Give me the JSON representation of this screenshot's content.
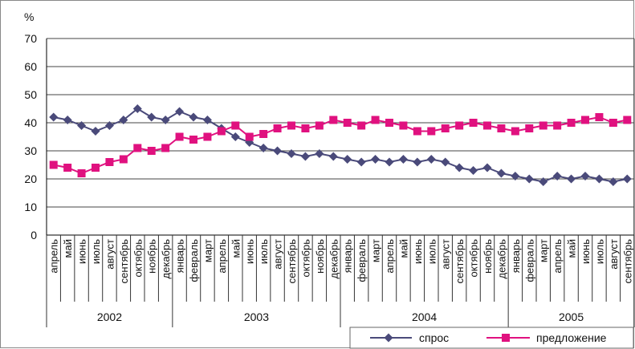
{
  "chart_data": {
    "type": "line",
    "title": "",
    "ylabel": "%",
    "xlabel": "",
    "ylim": [
      0,
      70
    ],
    "yticks": [
      "0",
      "10",
      "20",
      "30",
      "40",
      "50",
      "60",
      "70"
    ],
    "grid": true,
    "legend_position": "bottom-right",
    "categories": [
      "апрель",
      "май",
      "июнь",
      "июль",
      "август",
      "сентябрь",
      "октябрь",
      "ноябрь",
      "декабрь",
      "январь",
      "февраль",
      "март",
      "апрель",
      "май",
      "июнь",
      "июль",
      "август",
      "сентябрь",
      "октябрь",
      "ноябрь",
      "декабрь",
      "январь",
      "февраль",
      "март",
      "апрель",
      "май",
      "июнь",
      "июль",
      "август",
      "сентябрь",
      "октябрь",
      "ноябрь",
      "декабрь",
      "январь",
      "февраль",
      "март",
      "апрель",
      "май",
      "июнь",
      "июль",
      "август",
      "сентябрь"
    ],
    "years": [
      {
        "label": "2002",
        "count": 9
      },
      {
        "label": "2003",
        "count": 12
      },
      {
        "label": "2004",
        "count": 12
      },
      {
        "label": "2005",
        "count": 9
      }
    ],
    "series": [
      {
        "name": "спрос",
        "color": "#4a4a7a",
        "marker": "diamond",
        "values": [
          42,
          41,
          39,
          37,
          39,
          41,
          45,
          42,
          41,
          44,
          42,
          41,
          38,
          35,
          33,
          31,
          30,
          29,
          28,
          29,
          28,
          27,
          26,
          27,
          26,
          27,
          26,
          27,
          26,
          24,
          23,
          24,
          22,
          21,
          20,
          19,
          21,
          20,
          21,
          20,
          19,
          20
        ]
      },
      {
        "name": "предложение",
        "color": "#e0117f",
        "marker": "square",
        "values": [
          25,
          24,
          22,
          24,
          26,
          27,
          31,
          30,
          31,
          35,
          34,
          35,
          37,
          39,
          35,
          36,
          38,
          39,
          38,
          39,
          41,
          40,
          39,
          41,
          40,
          39,
          37,
          37,
          38,
          39,
          40,
          39,
          38,
          37,
          38,
          39,
          39,
          40,
          41,
          42,
          40,
          41
        ]
      }
    ]
  }
}
